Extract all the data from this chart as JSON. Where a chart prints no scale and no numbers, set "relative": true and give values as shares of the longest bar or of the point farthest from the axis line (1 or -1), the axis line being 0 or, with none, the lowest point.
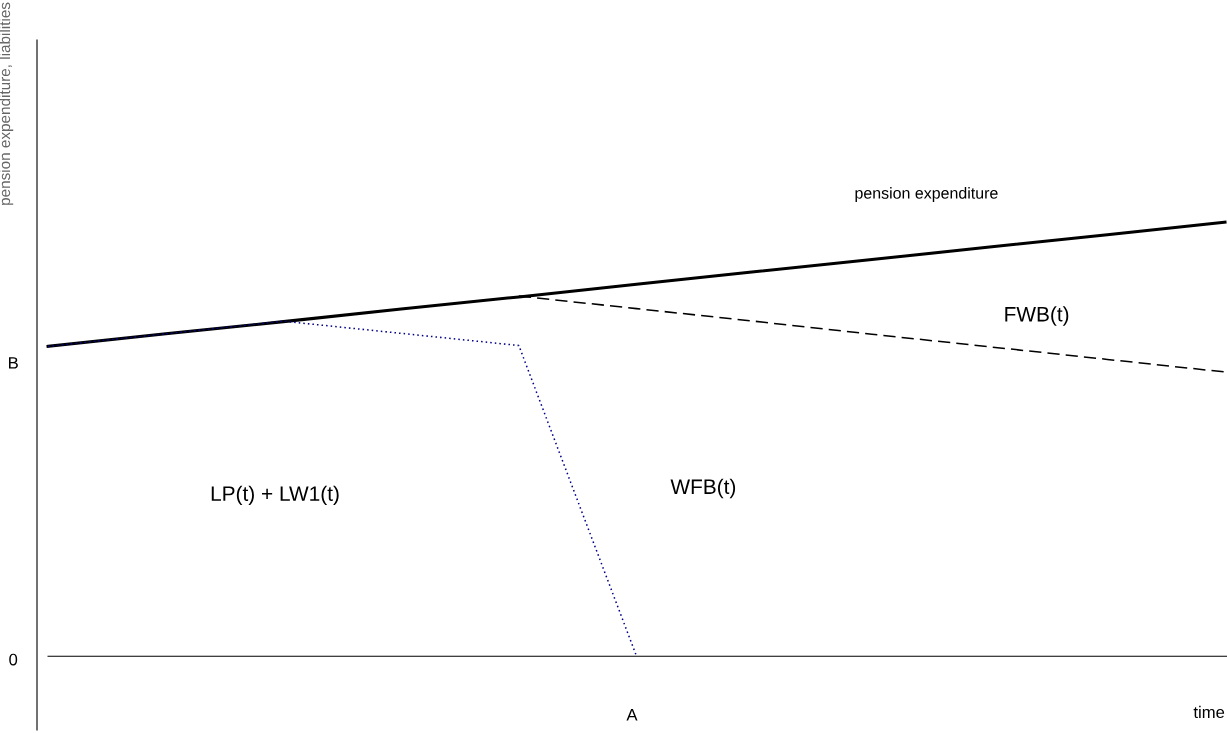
{
  "chart_data": {
    "type": "line",
    "xlabel": "time",
    "ylabel": "pension expenditure, liabilities",
    "categories": [
      null,
      null,
      null,
      null,
      null,
      null,
      null,
      null,
      null,
      null,
      null
    ],
    "relative": true,
    "series": [
      {
        "name": "pension expenditure",
        "color": "#000000",
        "line_style": "solid",
        "values": [
          0.714,
          0.743,
          0.771,
          0.8,
          0.828,
          0.857,
          0.886,
          0.914,
          0.943,
          0.971,
          1
        ]
      },
      {
        "color": "#000000",
        "line_style": "dashed",
        "values": [
          null,
          null,
          null,
          null,
          0.83,
          0.801,
          0.772,
          0.742,
          0.713,
          0.684,
          0.655
        ]
      },
      {
        "color": "#00008b",
        "line_style": "dotted",
        "values": [
          0.714,
          0.743,
          0.772,
          0.744,
          0.716,
          0,
          null,
          null,
          null,
          null,
          null
        ]
      }
    ],
    "annotations": [
      "FWB(t)",
      "WFB(t)",
      "LP(t) + LW1(t)",
      "B",
      "0",
      "A"
    ]
  }
}
